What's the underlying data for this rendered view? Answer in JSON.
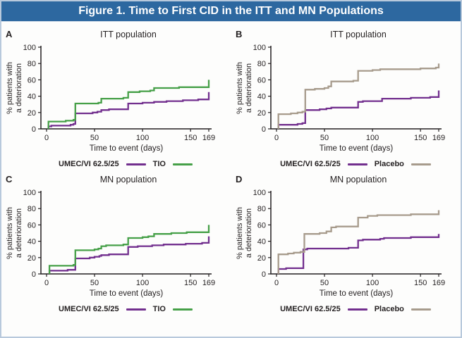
{
  "title": "Figure 1. Time to First CID in the ITT and MN Populations",
  "colors": {
    "title_bar_bg": "#2d68a0",
    "title_text": "#ffffff",
    "outer_border": "#b8c9dc",
    "axis": "#231f20",
    "text": "#231f20",
    "umec_purple": "#722f8e",
    "tio_green": "#46a048",
    "placebo_tan": "#a79b8c"
  },
  "axes": {
    "xlabel": "Time to event (days)",
    "ylabel_lines": [
      "% patients with",
      "a deterioration"
    ],
    "yticks": [
      0,
      20,
      40,
      60,
      80,
      100
    ],
    "xticks": [
      0,
      50,
      100,
      150,
      169
    ],
    "xlim": [
      0,
      169
    ],
    "ylim": [
      0,
      100
    ]
  },
  "chart_data": [
    {
      "type": "line",
      "step": true,
      "panel_letter": "A",
      "title": "ITT population",
      "xlabel": "Time to event (days)",
      "ylabel": "% patients with a deterioration",
      "xlim": [
        0,
        169
      ],
      "ylim": [
        0,
        100
      ],
      "grid": false,
      "legend_position": "bottom",
      "series": [
        {
          "name": "UMEC/VI 62.5/25",
          "color": "#722f8e",
          "points": [
            [
              2,
              3
            ],
            [
              5,
              4
            ],
            [
              25,
              5
            ],
            [
              28,
              6
            ],
            [
              30,
              19
            ],
            [
              48,
              20
            ],
            [
              53,
              21
            ],
            [
              57,
              23
            ],
            [
              65,
              24
            ],
            [
              85,
              31
            ],
            [
              100,
              32
            ],
            [
              112,
              33
            ],
            [
              125,
              34
            ],
            [
              142,
              35
            ],
            [
              158,
              36
            ],
            [
              169,
              45
            ]
          ]
        },
        {
          "name": "TIO",
          "color": "#46a048",
          "points": [
            [
              2,
              9
            ],
            [
              20,
              10
            ],
            [
              28,
              11
            ],
            [
              30,
              31
            ],
            [
              54,
              32
            ],
            [
              57,
              37
            ],
            [
              80,
              38
            ],
            [
              85,
              45
            ],
            [
              97,
              46
            ],
            [
              108,
              47
            ],
            [
              112,
              50
            ],
            [
              138,
              51
            ],
            [
              169,
              60
            ]
          ]
        }
      ]
    },
    {
      "type": "line",
      "step": true,
      "panel_letter": "B",
      "title": "ITT population",
      "xlabel": "Time to event (days)",
      "ylabel": "% patients with a deterioration",
      "xlim": [
        0,
        169
      ],
      "ylim": [
        0,
        100
      ],
      "grid": false,
      "legend_position": "bottom",
      "series": [
        {
          "name": "UMEC/VI 62.5/25",
          "color": "#722f8e",
          "points": [
            [
              2,
              5
            ],
            [
              22,
              6
            ],
            [
              27,
              7
            ],
            [
              30,
              23
            ],
            [
              45,
              24
            ],
            [
              52,
              25
            ],
            [
              57,
              26
            ],
            [
              85,
              33
            ],
            [
              90,
              34
            ],
            [
              110,
              37
            ],
            [
              140,
              38
            ],
            [
              160,
              39
            ],
            [
              169,
              47
            ]
          ]
        },
        {
          "name": "Placebo",
          "color": "#a79b8c",
          "points": [
            [
              2,
              18
            ],
            [
              15,
              19
            ],
            [
              22,
              20
            ],
            [
              27,
              21
            ],
            [
              30,
              48
            ],
            [
              40,
              49
            ],
            [
              50,
              50
            ],
            [
              54,
              52
            ],
            [
              57,
              58
            ],
            [
              80,
              59
            ],
            [
              85,
              71
            ],
            [
              100,
              72
            ],
            [
              108,
              73
            ],
            [
              150,
              74
            ],
            [
              166,
              75
            ],
            [
              169,
              80
            ]
          ]
        }
      ]
    },
    {
      "type": "line",
      "step": true,
      "panel_letter": "C",
      "title": "MN population",
      "xlabel": "Time to event (days)",
      "ylabel": "% patients with a deterioration",
      "xlim": [
        0,
        169
      ],
      "ylim": [
        0,
        100
      ],
      "grid": false,
      "legend_position": "bottom",
      "series": [
        {
          "name": "UMEC/VI 62.5/25",
          "color": "#722f8e",
          "points": [
            [
              3,
              4
            ],
            [
              22,
              5
            ],
            [
              30,
              19
            ],
            [
              45,
              20
            ],
            [
              50,
              21
            ],
            [
              55,
              22
            ],
            [
              57,
              23
            ],
            [
              65,
              24
            ],
            [
              85,
              33
            ],
            [
              95,
              34
            ],
            [
              110,
              35
            ],
            [
              122,
              36
            ],
            [
              145,
              37
            ],
            [
              162,
              38
            ],
            [
              169,
              46
            ]
          ]
        },
        {
          "name": "TIO",
          "color": "#46a048",
          "points": [
            [
              3,
              10
            ],
            [
              28,
              11
            ],
            [
              30,
              29
            ],
            [
              50,
              30
            ],
            [
              54,
              31
            ],
            [
              57,
              34
            ],
            [
              62,
              35
            ],
            [
              80,
              36
            ],
            [
              85,
              44
            ],
            [
              100,
              45
            ],
            [
              106,
              46
            ],
            [
              112,
              49
            ],
            [
              130,
              50
            ],
            [
              146,
              51
            ],
            [
              169,
              60
            ]
          ]
        }
      ]
    },
    {
      "type": "line",
      "step": true,
      "panel_letter": "D",
      "title": "MN population",
      "xlabel": "Time to event (days)",
      "ylabel": "% patients with a deterioration",
      "xlim": [
        0,
        169
      ],
      "ylim": [
        0,
        100
      ],
      "grid": false,
      "legend_position": "bottom",
      "series": [
        {
          "name": "UMEC/VI 62.5/25",
          "color": "#722f8e",
          "points": [
            [
              2,
              6
            ],
            [
              10,
              7
            ],
            [
              28,
              30
            ],
            [
              32,
              31
            ],
            [
              75,
              32
            ],
            [
              85,
              41
            ],
            [
              90,
              42
            ],
            [
              108,
              43
            ],
            [
              112,
              44
            ],
            [
              140,
              45
            ],
            [
              169,
              49
            ]
          ]
        },
        {
          "name": "Placebo",
          "color": "#a79b8c",
          "points": [
            [
              2,
              24
            ],
            [
              12,
              25
            ],
            [
              18,
              26
            ],
            [
              25,
              27
            ],
            [
              29,
              49
            ],
            [
              45,
              50
            ],
            [
              52,
              52
            ],
            [
              57,
              57
            ],
            [
              62,
              58
            ],
            [
              85,
              69
            ],
            [
              95,
              71
            ],
            [
              105,
              72
            ],
            [
              140,
              73
            ],
            [
              169,
              78
            ]
          ]
        }
      ]
    }
  ]
}
